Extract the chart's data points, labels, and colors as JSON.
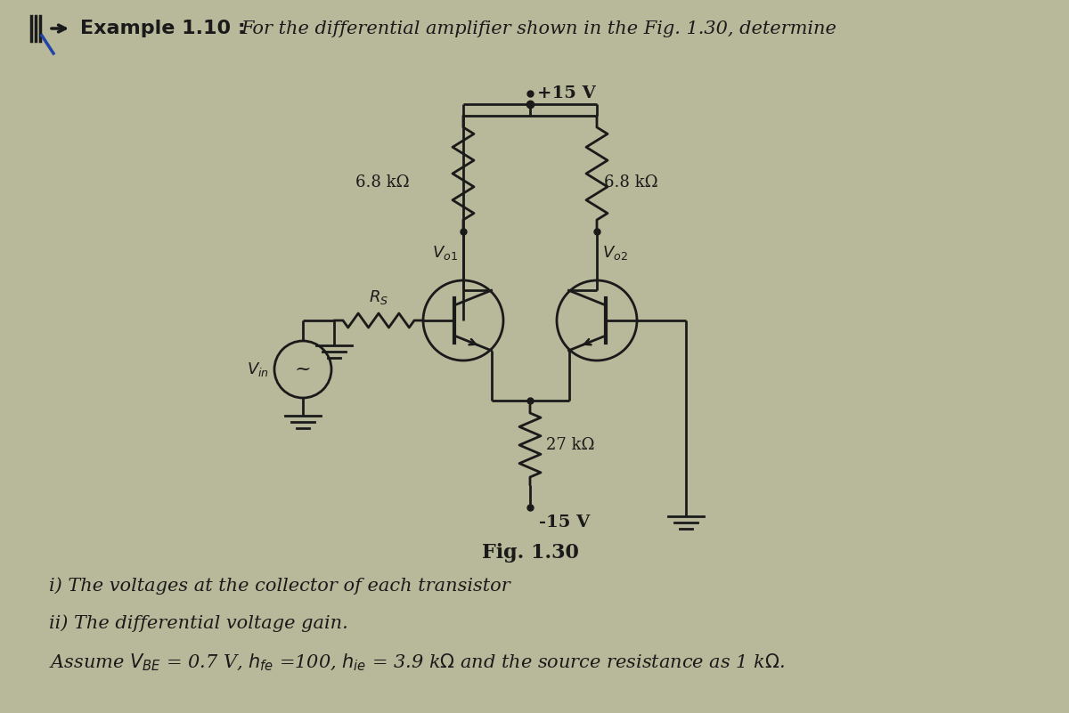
{
  "bg_color": "#b8b89a",
  "text_color": "#1a1a1a",
  "circuit_color": "#1a1a1a",
  "title_text": "Example 1.10 :",
  "title_desc": "For the differential amplifier shown in the Fig. 1.30, determine",
  "fig_label": "Fig. 1.30",
  "vcc_label": "+15 V",
  "vee_label": "-15 V",
  "rc1_label": "6.8 kΩ",
  "rc2_label": "6.8 kΩ",
  "re_label": "27 kΩ",
  "rs_label": "R_S",
  "vin_label": "V_in",
  "vo1_label": "V_o1",
  "vo2_label": "V_o2",
  "item_i": "i) The voltages at the collector of each transistor",
  "item_ii": "ii) The differential voltage gain.",
  "font_size_title": 16,
  "font_size_body": 15,
  "font_size_circuit": 12
}
